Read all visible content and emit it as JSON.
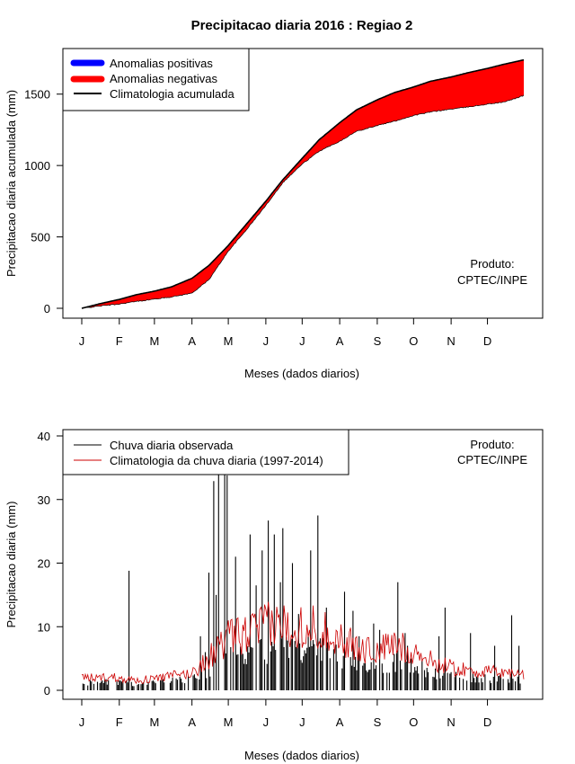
{
  "title": "Precipitacao diaria 2016 : Regiao 2",
  "months": [
    "J",
    "F",
    "M",
    "A",
    "M",
    "J",
    "J",
    "A",
    "S",
    "O",
    "N",
    "D"
  ],
  "product_line1": "Produto:",
  "product_line2": "CPTEC/INPE",
  "colors": {
    "positive": "#0000ff",
    "negative": "#ff0000",
    "climatology_cumulative": "#000000",
    "observed_bars": "#000000",
    "climatology_daily": "#cc0000"
  },
  "chart_data": [
    {
      "type": "area",
      "title": "Precipitacao diaria 2016 : Regiao 2",
      "xlabel": "Meses (dados diarios)",
      "ylabel": "Precipitacao diaria acumulada (mm)",
      "xlim": [
        1,
        366
      ],
      "ylim": [
        0,
        1750
      ],
      "yticks": [
        0,
        500,
        1000,
        1500
      ],
      "grid": false,
      "legend_position": "top-left",
      "legend": [
        "Anomalias positivas",
        "Anomalias negativas",
        "Climatologia acumulada"
      ],
      "day": [
        1,
        15,
        32,
        46,
        61,
        75,
        92,
        106,
        122,
        136,
        153,
        167,
        183,
        197,
        214,
        228,
        245,
        259,
        275,
        289,
        306,
        320,
        336,
        350,
        366
      ],
      "climatology_cumulative": [
        0,
        30,
        62,
        95,
        120,
        150,
        210,
        300,
        440,
        580,
        750,
        900,
        1050,
        1180,
        1300,
        1390,
        1460,
        1510,
        1550,
        1590,
        1620,
        1650,
        1680,
        1710,
        1740
      ],
      "observed_cumulative_2016": [
        0,
        15,
        30,
        48,
        64,
        80,
        106,
        200,
        400,
        540,
        720,
        880,
        1010,
        1100,
        1170,
        1240,
        1280,
        1310,
        1350,
        1375,
        1395,
        1410,
        1430,
        1445,
        1490
      ]
    },
    {
      "type": "bar",
      "xlabel": "Meses (dados diarios)",
      "ylabel": "Precipitacao diaria (mm)",
      "xlim": [
        1,
        366
      ],
      "ylim": [
        0,
        40
      ],
      "yticks": [
        0,
        10,
        20,
        30,
        40
      ],
      "grid": false,
      "legend_position": "top-left",
      "legend": [
        "Chuva diaria observada",
        "Climatologia da chuva diaria (1997-2014)"
      ],
      "observed_peaks": {
        "day": [
          40,
          99,
          103,
          106,
          110,
          112,
          114,
          119,
          121,
          128,
          140,
          145,
          150,
          155,
          160,
          165,
          167,
          175,
          180,
          190,
          196,
          203,
          218,
          225,
          230,
          242,
          247,
          262,
          268,
          270,
          296,
          301,
          322,
          342,
          356,
          362
        ],
        "value": [
          18.8,
          8.5,
          6,
          18.5,
          32.9,
          15,
          34,
          38,
          33.8,
          21,
          24.5,
          16.5,
          22,
          26.7,
          24.5,
          17,
          25.5,
          20,
          12,
          22,
          27.5,
          13,
          15.5,
          12.5,
          8.5,
          10.5,
          9.5,
          17,
          9,
          7,
          8.5,
          13,
          9,
          7,
          11.8,
          7
        ]
      },
      "climatology_daily_profile": {
        "day": [
          1,
          15,
          32,
          46,
          61,
          75,
          92,
          106,
          122,
          136,
          153,
          167,
          183,
          197,
          214,
          228,
          245,
          259,
          275,
          289,
          306,
          320,
          336,
          350,
          366
        ],
        "value": [
          1.8,
          2,
          2,
          1.5,
          1.8,
          2.2,
          2.6,
          5,
          8,
          8.5,
          10,
          10,
          10,
          9.5,
          8,
          6.5,
          6,
          7,
          6,
          4.5,
          3.5,
          3,
          2.8,
          2.8,
          2.5
        ]
      }
    }
  ]
}
